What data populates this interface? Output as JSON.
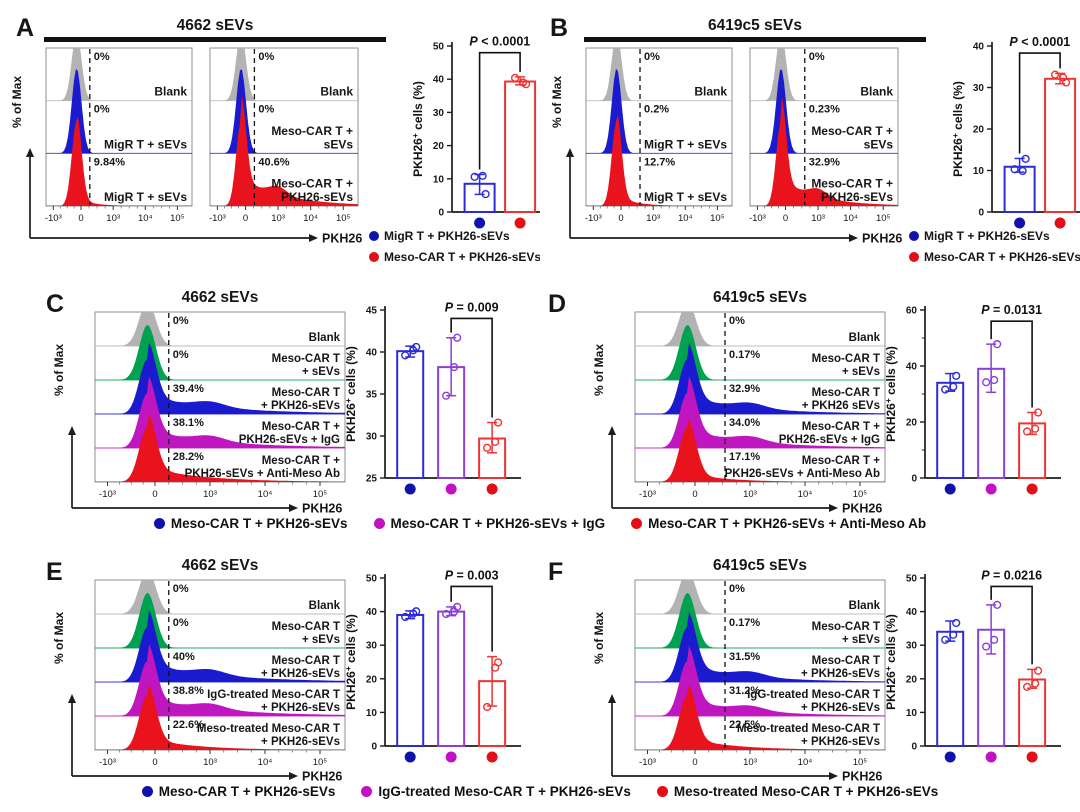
{
  "colors": {
    "flow": {
      "gray": "#b3b3b3",
      "blue": "#1a1ace",
      "red": "#e8131c",
      "green": "#00a14f",
      "magenta": "#bf16bf"
    },
    "bar_outline": {
      "blue": "#2b2bd8",
      "purple": "#8a3fd8",
      "red": "#ee3333"
    },
    "dot": {
      "blue": "#1111ad",
      "magenta": "#c211c2",
      "red": "#e30e18"
    },
    "axis": "#1c1c1c"
  },
  "chart_data": [
    {
      "id": "A",
      "type": "flow-histogram+bar",
      "title": "4662 sEVs",
      "title_bar": true,
      "flow": {
        "ylabel": "% of Max",
        "xlabel": "PKH26",
        "xticks": [
          "-10³",
          "0",
          "10³",
          "10⁴",
          "10⁵"
        ],
        "gate_frac": 0.3,
        "boxes": [
          {
            "curves": [
              {
                "color": "gray",
                "pct": "0%",
                "label": "Blank"
              },
              {
                "color": "blue",
                "pct": "0%",
                "label": "MigR T + sEVs"
              },
              {
                "color": "red",
                "pct": "9.84%",
                "label": "MigR T +  sEVs"
              }
            ]
          },
          {
            "curves": [
              {
                "color": "gray",
                "pct": "0%",
                "label": "Blank"
              },
              {
                "color": "blue",
                "pct": "0%",
                "label": "Meso-CAR T +\nsEVs"
              },
              {
                "color": "red",
                "pct": "40.6%",
                "label": "Meso-CAR T +\nPKH26-sEVs"
              }
            ]
          }
        ]
      },
      "bar": {
        "p": "P < 0.0001",
        "ylabel": "PKH26+ cells (%)",
        "ymin": 0,
        "ymax": 50,
        "ystep": 10,
        "bars": [
          {
            "color": "blue",
            "dot": "blue",
            "value": 8.5,
            "err": [
              5.3,
              11.3
            ],
            "dots": [
              10.6,
              10.9,
              5.4
            ]
          },
          {
            "color": "red",
            "dot": "red",
            "value": 39.3,
            "err": [
              38.3,
              40.7
            ],
            "dots": [
              40.4,
              39.0,
              38.5
            ]
          }
        ],
        "bracket": {
          "from": 0,
          "to": 1,
          "level": 48
        }
      },
      "legend": [
        {
          "color": "blue",
          "label": "MigR T + PKH26-sEVs"
        },
        {
          "color": "red",
          "label": "Meso-CAR T + PKH26-sEVs"
        }
      ]
    },
    {
      "id": "B",
      "type": "flow-histogram+bar",
      "title": "6419c5 sEVs",
      "title_bar": true,
      "flow": {
        "ylabel": "% of Max",
        "xlabel": "PKH26",
        "xticks": [
          "-10³",
          "0",
          "10³",
          "10⁴",
          "10⁵"
        ],
        "gate_frac": 0.37,
        "boxes": [
          {
            "curves": [
              {
                "color": "gray",
                "pct": "0%",
                "label": "Blank"
              },
              {
                "color": "blue",
                "pct": "0.2%",
                "label": "MigR T + sEVs"
              },
              {
                "color": "red",
                "pct": "12.7%",
                "label": "MigR T +  sEVs"
              }
            ]
          },
          {
            "curves": [
              {
                "color": "gray",
                "pct": "0%",
                "label": "Blank"
              },
              {
                "color": "blue",
                "pct": "0.23%",
                "label": "Meso-CAR T +\nsEVs"
              },
              {
                "color": "red",
                "pct": "32.9%",
                "label": "Meso-CAR T +\nPKH26-sEVs"
              }
            ]
          }
        ]
      },
      "bar": {
        "p": "P < 0.0001",
        "ylabel": "PKH26+ cells (%)",
        "ymin": 0,
        "ymax": 40,
        "ystep": 10,
        "bars": [
          {
            "color": "blue",
            "dot": "blue",
            "value": 10.9,
            "err": [
              9.6,
              12.9
            ],
            "dots": [
              10.3,
              9.9,
              12.8
            ]
          },
          {
            "color": "red",
            "dot": "red",
            "value": 32.1,
            "err": [
              30.9,
              33.4
            ],
            "dots": [
              33.1,
              32.4,
              31.2
            ]
          }
        ],
        "bracket": {
          "from": 0,
          "to": 1,
          "level": 38.3
        }
      },
      "legend": [
        {
          "color": "blue",
          "label": "MigR T + PKH26-sEVs"
        },
        {
          "color": "red",
          "label": "Meso-CAR T + PKH26-sEVs"
        }
      ]
    },
    {
      "id": "C",
      "type": "flow-histogram+bar",
      "title": "4662 sEVs",
      "title_bar": false,
      "flow": {
        "ylabel": "% of Max",
        "xlabel": "PKH26",
        "xticks": [
          "-10³",
          "0",
          "10³",
          "10⁴",
          "10⁵"
        ],
        "gate_frac": 0.295,
        "boxes": [
          {
            "curves": [
              {
                "color": "gray",
                "pct": "0%",
                "label": "Blank"
              },
              {
                "color": "green",
                "pct": "0%",
                "label": "Meso-CAR T\n+ sEVs"
              },
              {
                "color": "blue",
                "pct": "39.4%",
                "label": "Meso-CAR T\n+ PKH26-sEVs"
              },
              {
                "color": "magenta",
                "pct": "38.1%",
                "label": "Meso-CAR T +\nPKH26-sEVs + IgG"
              },
              {
                "color": "red",
                "pct": "28.2%",
                "label": "Meso-CAR T +\nPKH26-sEVs + Anti-Meso Ab"
              }
            ]
          }
        ]
      },
      "bar": {
        "p": "P = 0.009",
        "ylabel": "PKH26+ cells (%)",
        "ymin": 25,
        "ymax": 45,
        "ystep": 5,
        "bars": [
          {
            "color": "blue",
            "dot": "blue",
            "value": 40.1,
            "err": [
              39.4,
              40.7
            ],
            "dots": [
              39.6,
              40.2,
              40.6
            ]
          },
          {
            "color": "purple",
            "dot": "magenta",
            "value": 38.2,
            "err": [
              34.8,
              41.7
            ],
            "dots": [
              34.8,
              38.2,
              41.7
            ]
          },
          {
            "color": "red",
            "dot": "red",
            "value": 29.7,
            "err": [
              28.0,
              31.6
            ],
            "dots": [
              28.6,
              29.3,
              31.6
            ]
          }
        ],
        "bracket": {
          "from": 1,
          "to": 2,
          "level": 44
        }
      }
    },
    {
      "id": "D",
      "type": "flow-histogram+bar",
      "title": "6419c5 sEVs",
      "title_bar": false,
      "flow": {
        "ylabel": "% of Max",
        "xlabel": "PKH26",
        "xticks": [
          "-10³",
          "0",
          "10³",
          "10⁴",
          "10⁵"
        ],
        "gate_frac": 0.36,
        "boxes": [
          {
            "curves": [
              {
                "color": "gray",
                "pct": "0%",
                "label": "Blank"
              },
              {
                "color": "green",
                "pct": "0.17%",
                "label": "Meso-CAR T\n+ sEVs"
              },
              {
                "color": "blue",
                "pct": "32.9%",
                "label": "Meso-CAR T\n+ PKH26 sEVs"
              },
              {
                "color": "magenta",
                "pct": "34.0%",
                "label": "Meso-CAR T +\nPKH26-sEVs + IgG"
              },
              {
                "color": "red",
                "pct": "17.1%",
                "label": "Meso-CAR T +\nPKH26-sEVs + Anti-Meso Ab"
              }
            ]
          }
        ]
      },
      "bar": {
        "p": "P = 0.0131",
        "ylabel": "PKH26+ cells (%)",
        "ymin": 0,
        "ymax": 60,
        "ystep": 20,
        "bars": [
          {
            "color": "blue",
            "dot": "blue",
            "value": 34,
            "err": [
              31.0,
              37.3
            ],
            "dots": [
              31.6,
              32.6,
              36.5
            ]
          },
          {
            "color": "purple",
            "dot": "magenta",
            "value": 39,
            "err": [
              30.6,
              47.8
            ],
            "dots": [
              34.2,
              35.0,
              47.8
            ]
          },
          {
            "color": "red",
            "dot": "red",
            "value": 19.5,
            "err": [
              15.6,
              23.4
            ],
            "dots": [
              16.6,
              17.6,
              23.4
            ]
          }
        ],
        "bracket": {
          "from": 1,
          "to": 2,
          "level": 56
        }
      }
    },
    {
      "id": "E",
      "type": "flow-histogram+bar",
      "title": "4662 sEVs",
      "title_bar": false,
      "flow": {
        "ylabel": "% of Max",
        "xlabel": "PKH26",
        "xticks": [
          "-10³",
          "0",
          "10³",
          "10⁴",
          "10⁵"
        ],
        "gate_frac": 0.295,
        "boxes": [
          {
            "curves": [
              {
                "color": "gray",
                "pct": "0%",
                "label": "Blank"
              },
              {
                "color": "green",
                "pct": "0%",
                "label": "Meso-CAR T\n+ sEVs"
              },
              {
                "color": "blue",
                "pct": "40%",
                "label": "Meso-CAR T\n+ PKH26-sEVs"
              },
              {
                "color": "magenta",
                "pct": "38.8%",
                "label": "IgG-treated Meso-CAR T\n+ PKH26-sEVs"
              },
              {
                "color": "red",
                "pct": "22.6%",
                "label": "Meso-treated Meso-CAR T\n+ PKH26-sEVs"
              }
            ]
          }
        ]
      },
      "bar": {
        "p": "P = 0.003",
        "ylabel": "PKH26+ cells (%)",
        "ymin": 0,
        "ymax": 50,
        "ystep": 10,
        "bars": [
          {
            "color": "blue",
            "dot": "blue",
            "value": 39,
            "err": [
              37.9,
              40.2
            ],
            "dots": [
              38.4,
              39.4,
              40.1
            ]
          },
          {
            "color": "purple",
            "dot": "magenta",
            "value": 40,
            "err": [
              38.8,
              41.4
            ],
            "dots": [
              39.3,
              40.0,
              41.4
            ]
          },
          {
            "color": "red",
            "dot": "red",
            "value": 19.3,
            "err": [
              11.9,
              26.6
            ],
            "dots": [
              11.6,
              23.3,
              24.9
            ]
          }
        ],
        "bracket": {
          "from": 1,
          "to": 2,
          "level": 47.5
        }
      }
    },
    {
      "id": "F",
      "type": "flow-histogram+bar",
      "title": "6419c5 sEVs",
      "title_bar": false,
      "flow": {
        "ylabel": "% of Max",
        "xlabel": "PKH26",
        "xticks": [
          "-10³",
          "0",
          "10³",
          "10⁴",
          "10⁵"
        ],
        "gate_frac": 0.36,
        "boxes": [
          {
            "curves": [
              {
                "color": "gray",
                "pct": "0%",
                "label": "Blank"
              },
              {
                "color": "green",
                "pct": "0.17%",
                "label": "Meso-CAR T\n+ sEVs"
              },
              {
                "color": "blue",
                "pct": "31.5%",
                "label": "Meso-CAR T\n+ PKH26-sEVs"
              },
              {
                "color": "magenta",
                "pct": "31.2%",
                "label": "IgG-treated Meso-CAR T\n+ PKH26-sEVs"
              },
              {
                "color": "red",
                "pct": "22.5%",
                "label": "Meso-treated Meso-CAR T\n+ PKH26-sEVs"
              }
            ]
          }
        ]
      },
      "bar": {
        "p": "P = 0.0216",
        "ylabel": "PKH26+ cells (%)",
        "ymin": 0,
        "ymax": 50,
        "ystep": 10,
        "bars": [
          {
            "color": "blue",
            "dot": "blue",
            "value": 34,
            "err": [
              31.2,
              37.2
            ],
            "dots": [
              31.6,
              33.1,
              36.6
            ]
          },
          {
            "color": "purple",
            "dot": "magenta",
            "value": 34.6,
            "err": [
              27.4,
              42.0
            ],
            "dots": [
              29.6,
              31.6,
              42.0
            ]
          },
          {
            "color": "red",
            "dot": "red",
            "value": 19.8,
            "err": [
              17.2,
              22.8
            ],
            "dots": [
              17.6,
              18.6,
              22.4
            ]
          }
        ],
        "bracket": {
          "from": 1,
          "to": 2,
          "level": 47.5
        }
      }
    }
  ],
  "legend_cd": [
    {
      "color": "blue",
      "label": "Meso-CAR T + PKH26-sEVs"
    },
    {
      "color": "magenta",
      "label": "Meso-CAR T + PKH26-sEVs + IgG"
    },
    {
      "color": "red",
      "label": "Meso-CAR T + PKH26-sEVs + Anti-Meso Ab"
    }
  ],
  "legend_ef": [
    {
      "color": "blue",
      "label": "Meso-CAR T + PKH26-sEVs"
    },
    {
      "color": "magenta",
      "label": "IgG-treated Meso-CAR T + PKH26-sEVs"
    },
    {
      "color": "red",
      "label": "Meso-treated Meso-CAR T + PKH26-sEVs"
    }
  ]
}
